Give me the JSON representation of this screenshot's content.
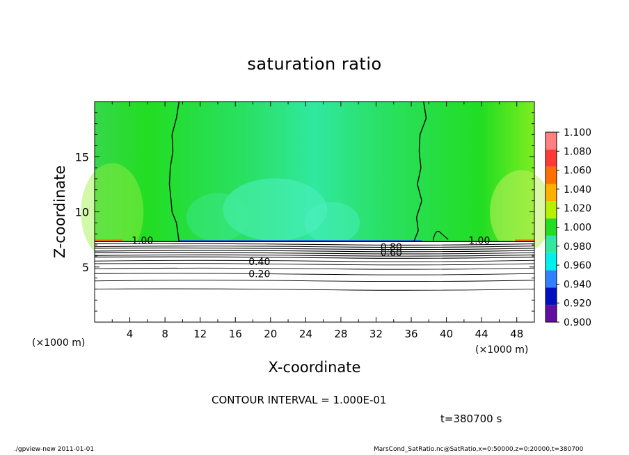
{
  "chart_data": {
    "type": "heatmap",
    "title": "saturation ratio",
    "xlabel": "X-coordinate",
    "ylabel": "Z-coordinate",
    "x_unit_left": "(×1000 m)",
    "x_unit_right": "(×1000 m)",
    "xlim": [
      0,
      50
    ],
    "ylim": [
      0,
      20
    ],
    "xticks": [
      "4",
      "8",
      "12",
      "16",
      "20",
      "24",
      "28",
      "32",
      "36",
      "40",
      "44",
      "48"
    ],
    "xtick_values": [
      4,
      8,
      12,
      16,
      20,
      24,
      28,
      32,
      36,
      40,
      44,
      48
    ],
    "yticks": [
      "5",
      "10",
      "15"
    ],
    "ytick_values": [
      5,
      10,
      15
    ],
    "colorbar": {
      "levels": [
        "1.100",
        "1.080",
        "1.060",
        "1.040",
        "1.020",
        "1.000",
        "0.980",
        "0.960",
        "0.940",
        "0.920",
        "0.900"
      ],
      "colors": [
        "#ff8080",
        "#ff3838",
        "#ff7000",
        "#ffb000",
        "#b8f000",
        "#22dd22",
        "#30e8a0",
        "#00f0f0",
        "#3080ff",
        "#0010c0",
        "#6010a0"
      ]
    },
    "contour_labels": [
      {
        "text": "1.00",
        "x": 4.2,
        "y": 7.4
      },
      {
        "text": "1.00",
        "x": 42.5,
        "y": 7.4
      },
      {
        "text": "0.80",
        "x": 32.5,
        "y": 6.8
      },
      {
        "text": "0.60",
        "x": 32.5,
        "y": 6.3
      },
      {
        "text": "0.40",
        "x": 17.5,
        "y": 5.5
      },
      {
        "text": "0.20",
        "x": 17.5,
        "y": 4.4
      }
    ],
    "contour_levels": [
      1.0,
      0.8,
      0.6,
      0.4,
      0.2
    ],
    "grid": false
  },
  "contour_interval": "CONTOUR INTERVAL = 1.000E-01",
  "time": "t=380700  s",
  "footer": {
    "left": "./gpview-new   2011-01-01",
    "right": "MarsCond_SatRatio.nc@SatRatio,x=0:50000,z=0:20000,t=380700"
  }
}
